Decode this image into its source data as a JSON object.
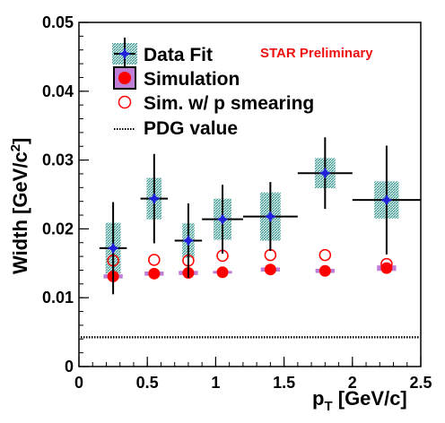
{
  "chart_data": {
    "type": "scatter",
    "title": "",
    "xlabel": {
      "main": "p",
      "sub": "T",
      "rest": " [GeV/c]"
    },
    "ylabel": {
      "main": "Width [GeV/c",
      "sup": "2",
      "rest": "]"
    },
    "xlim": [
      0,
      2.5
    ],
    "ylim": [
      0,
      0.05
    ],
    "x_ticks": [
      "0",
      "0.5",
      "1",
      "1.5",
      "2",
      "2.5"
    ],
    "y_ticks": [
      "0",
      "0.01",
      "0.02",
      "0.03",
      "0.04",
      "0.05"
    ],
    "annotation": "STAR Preliminary",
    "legend": [
      "Data Fit",
      "Simulation",
      "Sim. w/ p smearing",
      "PDG value"
    ],
    "colors": {
      "data_fit": "#1f1fdc",
      "sys_box": "#5fb0aa",
      "simulation": "#ff0000",
      "sim_box": "#bf7fd6",
      "annotation": "#ee1111"
    },
    "series": [
      {
        "name": "Data Fit",
        "x": [
          0.25,
          0.55,
          0.8,
          1.05,
          1.4,
          1.8,
          2.25
        ],
        "xerr": [
          0.1,
          0.1,
          0.1,
          0.15,
          0.2,
          0.2,
          0.25
        ],
        "y": [
          0.0172,
          0.0244,
          0.0183,
          0.0214,
          0.0218,
          0.0281,
          0.0242
        ],
        "yerr": [
          0.0067,
          0.0065,
          0.0054,
          0.005,
          0.005,
          0.0052,
          0.0079
        ],
        "sys": [
          0.0037,
          0.003,
          0.0025,
          0.003,
          0.0035,
          0.0022,
          0.0027
        ],
        "sys_half_width": [
          0.055,
          0.055,
          0.045,
          0.065,
          0.075,
          0.075,
          0.09
        ]
      },
      {
        "name": "Simulation",
        "x": [
          0.25,
          0.55,
          0.8,
          1.05,
          1.4,
          1.8,
          2.25
        ],
        "y": [
          0.0131,
          0.0135,
          0.0136,
          0.0137,
          0.0141,
          0.0139,
          0.0143
        ],
        "sys": [
          0.0003,
          0.0003,
          0.0003,
          0.0002,
          0.0003,
          0.0003,
          0.0004
        ]
      },
      {
        "name": "Sim. w/ p smearing",
        "x": [
          0.25,
          0.55,
          0.8,
          1.05,
          1.4,
          1.8,
          2.25
        ],
        "y": [
          0.0154,
          0.0155,
          0.0154,
          0.0161,
          0.0162,
          0.0162,
          0.0149
        ]
      },
      {
        "name": "PDG value",
        "y": 0.00426
      }
    ],
    "grid": false,
    "legend_position": "top-left"
  }
}
